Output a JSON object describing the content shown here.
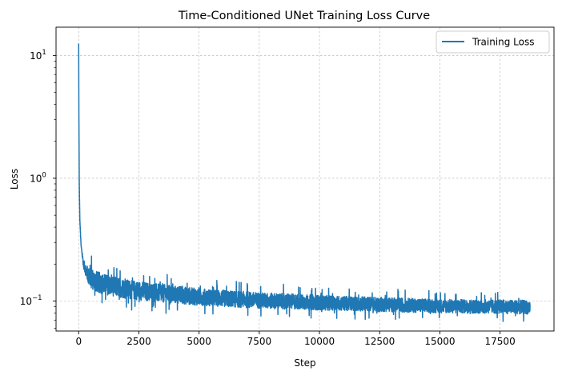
{
  "chart_data": {
    "type": "line",
    "title": "Time-Conditioned UNet Training Loss Curve",
    "xlabel": "Step",
    "ylabel": "Loss",
    "xlim": [
      -940,
      19740
    ],
    "ylim": [
      0.057,
      17.0
    ],
    "yscale": "log",
    "grid": true,
    "legend_position": "upper-right",
    "x_ticks": [
      0,
      2500,
      5000,
      7500,
      10000,
      12500,
      15000,
      17500
    ],
    "x_tick_labels": [
      "0",
      "2500",
      "5000",
      "7500",
      "10000",
      "12500",
      "15000",
      "17500"
    ],
    "y_ticks": [
      0.1,
      1,
      10
    ],
    "y_tick_labels": [
      "10",
      "10",
      "10"
    ],
    "y_tick_exponents": [
      "−1",
      "0",
      "1"
    ],
    "series": [
      {
        "name": "Training Loss",
        "color": "#1f77b4",
        "x_range": [
          0,
          18750
        ],
        "profile": [
          [
            0,
            12.5
          ],
          [
            10,
            3.0
          ],
          [
            25,
            0.9
          ],
          [
            50,
            0.45
          ],
          [
            100,
            0.28
          ],
          [
            200,
            0.2
          ],
          [
            400,
            0.16
          ],
          [
            700,
            0.145
          ],
          [
            1000,
            0.138
          ],
          [
            2000,
            0.125
          ],
          [
            3000,
            0.118
          ],
          [
            4000,
            0.113
          ],
          [
            5000,
            0.108
          ],
          [
            6000,
            0.105
          ],
          [
            7500,
            0.101
          ],
          [
            9000,
            0.099
          ],
          [
            10000,
            0.097
          ],
          [
            12500,
            0.094
          ],
          [
            15000,
            0.091
          ],
          [
            17500,
            0.09
          ],
          [
            18750,
            0.089
          ]
        ],
        "noise_band": [
          [
            0,
            0.0
          ],
          [
            500,
            0.2
          ],
          [
            2000,
            0.18
          ],
          [
            5000,
            0.16
          ],
          [
            10000,
            0.14
          ],
          [
            15000,
            0.13
          ],
          [
            18750,
            0.13
          ]
        ]
      }
    ]
  }
}
